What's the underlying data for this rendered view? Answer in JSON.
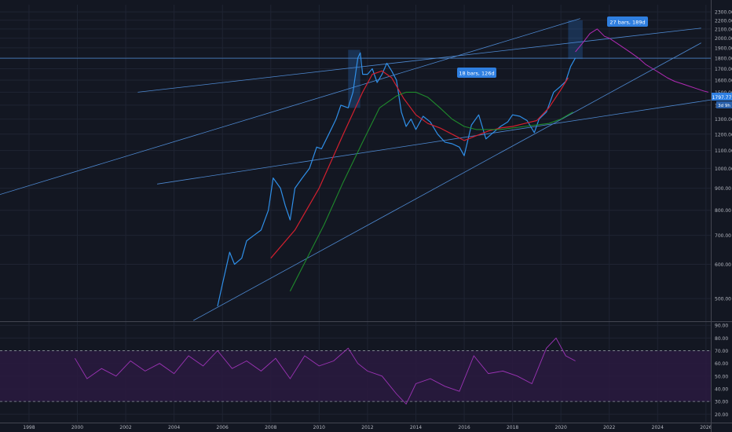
{
  "colors": {
    "background": "#131722",
    "grid": "#1f2433",
    "price": "#2f8fe8",
    "ma_fast": "#d3202f",
    "ma_slow": "#1f8a2c",
    "trendline": "#4e89d1",
    "projection": "#b02ab3",
    "rsi": "#9c33b5",
    "rsi_band": "#2a1a3f",
    "label_bg": "#2f7fe0",
    "axis_text": "#b2b5be"
  },
  "chart_data": [
    {
      "type": "line",
      "title": "",
      "x_axis": {
        "range": [
          1996.8,
          2026.2
        ],
        "tick_labels": [
          "1998",
          "2000",
          "2002",
          "2004",
          "2006",
          "2008",
          "2010",
          "2012",
          "2014",
          "2016",
          "2018",
          "2020",
          "2022",
          "2024",
          "2026"
        ]
      },
      "y_axis": {
        "scale": "log",
        "range": [
          445,
          2390
        ],
        "tick_labels": [
          "500.00",
          "600.00",
          "700.00",
          "800.00",
          "900.00",
          "1000.00",
          "1100.00",
          "1200.00",
          "1300.00",
          "1400.00",
          "1500.00",
          "1600.00",
          "1700.00",
          "1800.00",
          "1900.00",
          "2000.00",
          "2100.00",
          "2200.00",
          "2300.00"
        ]
      },
      "grid": true,
      "series": [
        {
          "key": "price",
          "x": [
            2005.8,
            2006.0,
            2006.3,
            2006.5,
            2006.8,
            2007.0,
            2007.3,
            2007.6,
            2007.9,
            2008.1,
            2008.4,
            2008.6,
            2008.8,
            2009.0,
            2009.3,
            2009.6,
            2009.9,
            2010.1,
            2010.4,
            2010.7,
            2010.9,
            2011.2,
            2011.4,
            2011.6,
            2011.7,
            2011.8,
            2012.0,
            2012.2,
            2012.4,
            2012.6,
            2012.8,
            2013.0,
            2013.2,
            2013.4,
            2013.6,
            2013.8,
            2014.0,
            2014.3,
            2014.6,
            2014.9,
            2015.2,
            2015.5,
            2015.8,
            2016.0,
            2016.3,
            2016.6,
            2016.9,
            2017.2,
            2017.5,
            2017.8,
            2018.0,
            2018.3,
            2018.6,
            2018.9,
            2019.1,
            2019.4,
            2019.7,
            2020.0,
            2020.2,
            2020.4,
            2020.6
          ],
          "values": [
            480,
            540,
            640,
            600,
            620,
            680,
            700,
            720,
            800,
            950,
            900,
            820,
            760,
            900,
            950,
            1000,
            1120,
            1110,
            1200,
            1300,
            1400,
            1380,
            1500,
            1800,
            1850,
            1650,
            1650,
            1700,
            1580,
            1650,
            1750,
            1680,
            1600,
            1350,
            1250,
            1300,
            1230,
            1320,
            1280,
            1200,
            1150,
            1140,
            1120,
            1070,
            1260,
            1330,
            1170,
            1210,
            1250,
            1280,
            1330,
            1320,
            1290,
            1210,
            1300,
            1350,
            1500,
            1550,
            1590,
            1720,
            1800
          ]
        },
        {
          "key": "ma_fast",
          "x": [
            2008.0,
            2009.0,
            2010.0,
            2011.0,
            2011.8,
            2012.2,
            2012.6,
            2013.0,
            2013.5,
            2014.0,
            2014.5,
            2015.0,
            2015.5,
            2016.0,
            2016.5,
            2017.0,
            2017.5,
            2018.0,
            2018.5,
            2019.0,
            2019.5,
            2020.0,
            2020.3
          ],
          "values": [
            620,
            720,
            900,
            1200,
            1500,
            1650,
            1680,
            1620,
            1450,
            1330,
            1270,
            1240,
            1200,
            1160,
            1190,
            1220,
            1240,
            1250,
            1270,
            1290,
            1380,
            1520,
            1620
          ]
        },
        {
          "key": "ma_slow",
          "x": [
            2008.8,
            2009.5,
            2010.2,
            2011.0,
            2011.8,
            2012.5,
            2013.2,
            2013.6,
            2014.0,
            2014.5,
            2015.0,
            2015.5,
            2016.0,
            2016.5,
            2017.0,
            2017.5,
            2018.0,
            2018.5,
            2019.0,
            2019.5,
            2020.0,
            2020.5
          ],
          "values": [
            520,
            620,
            740,
            930,
            1150,
            1380,
            1470,
            1500,
            1500,
            1460,
            1380,
            1300,
            1250,
            1230,
            1230,
            1230,
            1240,
            1250,
            1260,
            1270,
            1300,
            1350
          ]
        },
        {
          "key": "projection",
          "x": [
            2020.6,
            2020.9,
            2021.2,
            2021.5,
            2021.8,
            2022.0,
            2022.3,
            2022.6,
            2022.9,
            2023.2,
            2023.5,
            2023.8,
            2024.1,
            2024.4,
            2024.7,
            2025.0,
            2025.3,
            2025.6,
            2025.9,
            2026.1
          ],
          "values": [
            1860,
            1950,
            2050,
            2100,
            2020,
            2000,
            1950,
            1900,
            1850,
            1800,
            1740,
            1700,
            1660,
            1620,
            1590,
            1570,
            1550,
            1530,
            1510,
            1500
          ]
        }
      ],
      "annotations": {
        "measure_1": "18 bars, 126d",
        "measure_2": "27 bars, 189d",
        "price_tag": "1797.77",
        "countdown_tag": "3d 9h"
      },
      "horizontal_line": 1797.77
    },
    {
      "type": "line",
      "title": "",
      "y_axis": {
        "range": [
          14,
          92
        ],
        "tick_labels": [
          "20.00",
          "30.00",
          "40.00",
          "50.00",
          "60.00",
          "70.00",
          "80.00",
          "90.00"
        ]
      },
      "bands": [
        30,
        70
      ],
      "series": [
        {
          "key": "rsi",
          "x": [
            1999.9,
            2000.4,
            2001.0,
            2001.6,
            2002.2,
            2002.8,
            2003.4,
            2004.0,
            2004.6,
            2005.2,
            2005.8,
            2006.4,
            2007.0,
            2007.6,
            2008.2,
            2008.8,
            2009.4,
            2010.0,
            2010.6,
            2011.2,
            2011.6,
            2012.0,
            2012.6,
            2013.2,
            2013.6,
            2014.0,
            2014.6,
            2015.2,
            2015.8,
            2016.4,
            2017.0,
            2017.6,
            2018.2,
            2018.8,
            2019.4,
            2019.8,
            2020.2,
            2020.6
          ],
          "values": [
            64,
            48,
            56,
            50,
            62,
            54,
            60,
            52,
            66,
            58,
            70,
            56,
            62,
            54,
            64,
            48,
            66,
            58,
            62,
            72,
            60,
            54,
            50,
            36,
            28,
            44,
            48,
            42,
            38,
            66,
            52,
            54,
            50,
            44,
            72,
            80,
            66,
            62
          ]
        }
      ]
    }
  ]
}
